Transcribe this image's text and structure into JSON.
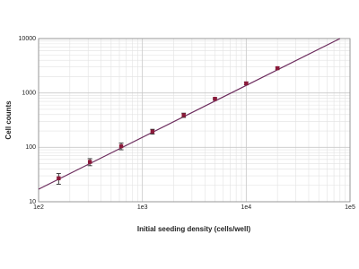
{
  "chart_data": {
    "type": "scatter",
    "x_label": "Initial seeding density (cells/well)",
    "y_label": "Cell counts",
    "log_x": true,
    "log_y": true,
    "grid": true,
    "minor_grid": true,
    "xlim": [
      100,
      100000
    ],
    "ylim": [
      10,
      10000
    ],
    "xticks": [
      {
        "value": 100,
        "label": "1e2"
      },
      {
        "value": 1000,
        "label": "1e3"
      },
      {
        "value": 10000,
        "label": "1e4"
      },
      {
        "value": 100000,
        "label": "1e5"
      }
    ],
    "yticks": [
      10,
      100,
      1000,
      10000
    ],
    "series": [
      {
        "name": "Cell counts",
        "color": "#8b1a3a",
        "error_color": "#2b2b2b",
        "x": [
          156,
          312,
          625,
          1250,
          2500,
          5000,
          10000,
          20000
        ],
        "values": [
          27,
          54,
          105,
          195,
          390,
          780,
          1500,
          2850
        ],
        "errors": [
          6,
          8,
          15,
          20,
          35,
          30,
          80,
          120
        ]
      }
    ],
    "fit_line": {
      "color": "#6b2a5c",
      "x": [
        100,
        80000
      ],
      "y": [
        17,
        10000
      ]
    }
  }
}
